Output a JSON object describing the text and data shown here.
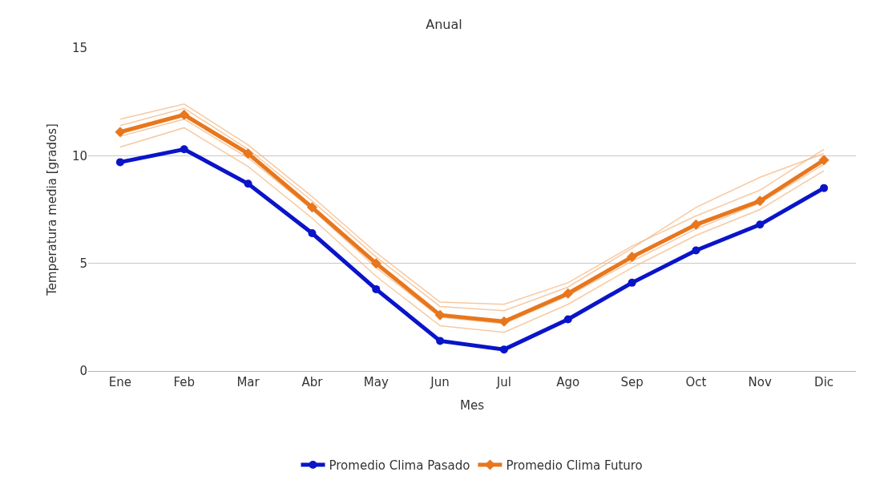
{
  "chart_data": {
    "type": "line",
    "title": "Anual",
    "xlabel": "Mes",
    "ylabel": "Temperatura media [grados]",
    "categories": [
      "Ene",
      "Feb",
      "Mar",
      "Abr",
      "May",
      "Jun",
      "Jul",
      "Ago",
      "Sep",
      "Oct",
      "Nov",
      "Dic"
    ],
    "series": [
      {
        "color": "#f5b27a",
        "marker": "none",
        "values": [
          11.7,
          12.4,
          10.5,
          8.1,
          5.5,
          3.2,
          3.1,
          4.1,
          5.8,
          7.2,
          8.4,
          10.3
        ]
      },
      {
        "color": "#f5b27a",
        "marker": "none",
        "values": [
          10.4,
          11.3,
          9.5,
          7.1,
          4.4,
          2.1,
          1.8,
          3.1,
          4.8,
          6.3,
          7.5,
          9.3
        ]
      },
      {
        "color": "#f5b27a",
        "marker": "none",
        "values": [
          11.4,
          12.2,
          10.3,
          7.9,
          5.3,
          3.0,
          2.8,
          3.9,
          5.7,
          7.6,
          9.0,
          10.1
        ]
      },
      {
        "color": "#f5b27a",
        "marker": "none",
        "values": [
          10.9,
          11.7,
          9.9,
          7.5,
          4.8,
          2.5,
          2.2,
          3.5,
          5.1,
          6.6,
          7.8,
          9.6
        ]
      },
      {
        "name": "Promedio Clima Pasado",
        "color": "#0a14c8",
        "marker": "circle",
        "values": [
          9.7,
          10.3,
          8.7,
          6.4,
          3.8,
          1.4,
          1.0,
          2.4,
          4.1,
          5.6,
          6.8,
          8.5
        ]
      },
      {
        "name": "Promedio Clima Futuro",
        "color": "#e8761c",
        "marker": "diamond",
        "values": [
          11.1,
          11.9,
          10.1,
          7.6,
          5.0,
          2.6,
          2.3,
          3.6,
          5.3,
          6.8,
          7.9,
          9.8
        ]
      }
    ],
    "ylim": [
      0,
      15
    ],
    "yticks": [
      0,
      5,
      10,
      15
    ],
    "grid": "y",
    "legend": "bottom"
  }
}
